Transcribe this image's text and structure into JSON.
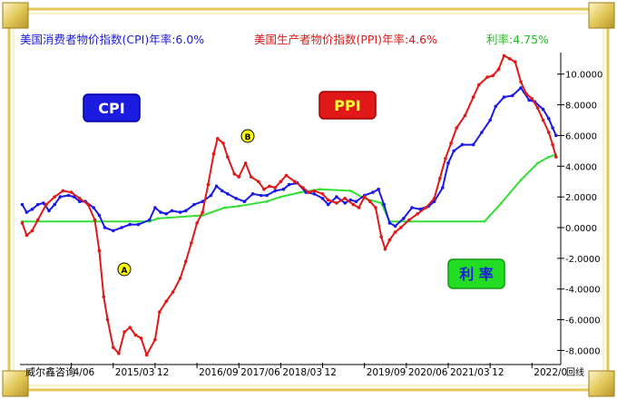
{
  "header": {
    "cpi_text": "美国消费者物价指数(CPI)年率:6.0%",
    "ppi_text": "美国生产者物价指数(PPI)年率:4.6%",
    "rate_text": "利率:4.75%"
  },
  "labels": {
    "cpi_badge": "CPI",
    "ppi_badge": "PPI",
    "rate_badge": "利 率",
    "marker_a": "A",
    "marker_b": "B"
  },
  "footer": {
    "brand": "威尔鑫咨询",
    "corner": "回线"
  },
  "colors": {
    "cpi": "#1a1ae6",
    "ppi": "#e01818",
    "rate": "#33dd33",
    "frame_gold": "#e2c85a",
    "badge_blue": "#1c1ce0",
    "badge_red": "#e01818",
    "badge_green": "#22dd22"
  },
  "chart_data": {
    "type": "line",
    "title": "",
    "xlabel": "",
    "ylabel": "",
    "ylim": [
      -8.8,
      11.4
    ],
    "grid": false,
    "x_ticks": [
      "4/06",
      "2015/03",
      "12",
      "2016/09",
      "2017/06",
      "2018/03",
      "12",
      "2019/09",
      "2020/06",
      "2021/03",
      "12",
      "2022/0"
    ],
    "x_tick_values": [
      2014.5,
      2015.25,
      2016.0,
      2016.75,
      2017.5,
      2018.25,
      2019.0,
      2019.75,
      2020.5,
      2021.25,
      2022.0,
      2022.75
    ],
    "y_ticks": [
      -8.0,
      -6.0,
      -4.0,
      -2.0,
      0.0,
      2.0,
      4.0,
      6.0,
      8.0,
      10.0
    ],
    "y_tick_labels": [
      "-8.0000",
      "-6.0000",
      "-4.0000",
      "-2.0000",
      "0.0000",
      "2.0000",
      "4.0000",
      "6.0000",
      "8.0000",
      "10.0000"
    ],
    "x_range": [
      2013.58,
      2023.2
    ],
    "series": [
      {
        "key": "cpi",
        "points": [
          [
            2013.62,
            1.5
          ],
          [
            2013.7,
            1.0
          ],
          [
            2013.8,
            1.2
          ],
          [
            2013.9,
            1.5
          ],
          [
            2014.0,
            1.6
          ],
          [
            2014.1,
            1.1
          ],
          [
            2014.2,
            1.5
          ],
          [
            2014.3,
            2.0
          ],
          [
            2014.45,
            2.1
          ],
          [
            2014.55,
            2.0
          ],
          [
            2014.65,
            1.7
          ],
          [
            2014.75,
            1.7
          ],
          [
            2014.9,
            1.3
          ],
          [
            2015.0,
            0.8
          ],
          [
            2015.1,
            0.0
          ],
          [
            2015.25,
            -0.2
          ],
          [
            2015.4,
            0.0
          ],
          [
            2015.55,
            0.2
          ],
          [
            2015.7,
            0.2
          ],
          [
            2015.9,
            0.5
          ],
          [
            2016.0,
            1.3
          ],
          [
            2016.1,
            1.0
          ],
          [
            2016.2,
            0.9
          ],
          [
            2016.3,
            1.1
          ],
          [
            2016.45,
            1.0
          ],
          [
            2016.55,
            1.1
          ],
          [
            2016.7,
            1.5
          ],
          [
            2016.85,
            1.7
          ],
          [
            2017.0,
            2.1
          ],
          [
            2017.1,
            2.7
          ],
          [
            2017.2,
            2.4
          ],
          [
            2017.3,
            2.2
          ],
          [
            2017.45,
            1.9
          ],
          [
            2017.6,
            1.7
          ],
          [
            2017.75,
            2.2
          ],
          [
            2017.9,
            2.1
          ],
          [
            2018.0,
            2.1
          ],
          [
            2018.15,
            2.4
          ],
          [
            2018.3,
            2.5
          ],
          [
            2018.4,
            2.8
          ],
          [
            2018.55,
            2.9
          ],
          [
            2018.7,
            2.3
          ],
          [
            2018.85,
            2.2
          ],
          [
            2019.0,
            1.9
          ],
          [
            2019.1,
            1.5
          ],
          [
            2019.25,
            2.0
          ],
          [
            2019.4,
            1.6
          ],
          [
            2019.5,
            1.8
          ],
          [
            2019.6,
            1.7
          ],
          [
            2019.75,
            2.1
          ],
          [
            2019.9,
            2.3
          ],
          [
            2020.0,
            2.5
          ],
          [
            2020.1,
            1.5
          ],
          [
            2020.2,
            0.3
          ],
          [
            2020.3,
            0.1
          ],
          [
            2020.45,
            0.6
          ],
          [
            2020.6,
            1.3
          ],
          [
            2020.75,
            1.2
          ],
          [
            2020.9,
            1.4
          ],
          [
            2021.0,
            1.7
          ],
          [
            2021.15,
            2.6
          ],
          [
            2021.25,
            4.2
          ],
          [
            2021.35,
            5.0
          ],
          [
            2021.5,
            5.4
          ],
          [
            2021.7,
            5.4
          ],
          [
            2021.85,
            6.2
          ],
          [
            2022.0,
            7.0
          ],
          [
            2022.1,
            7.9
          ],
          [
            2022.25,
            8.5
          ],
          [
            2022.4,
            8.6
          ],
          [
            2022.55,
            9.1
          ],
          [
            2022.7,
            8.3
          ],
          [
            2022.8,
            8.2
          ],
          [
            2022.95,
            7.7
          ],
          [
            2023.05,
            7.1
          ],
          [
            2023.12,
            6.5
          ],
          [
            2023.18,
            6.0
          ]
        ]
      },
      {
        "key": "ppi",
        "points": [
          [
            2013.62,
            0.3
          ],
          [
            2013.7,
            -0.5
          ],
          [
            2013.8,
            -0.2
          ],
          [
            2013.9,
            0.5
          ],
          [
            2014.05,
            1.5
          ],
          [
            2014.2,
            2.0
          ],
          [
            2014.35,
            2.4
          ],
          [
            2014.5,
            2.3
          ],
          [
            2014.65,
            1.9
          ],
          [
            2014.8,
            1.5
          ],
          [
            2014.92,
            0.5
          ],
          [
            2015.0,
            -1.5
          ],
          [
            2015.08,
            -4.5
          ],
          [
            2015.15,
            -6.0
          ],
          [
            2015.25,
            -7.8
          ],
          [
            2015.35,
            -8.2
          ],
          [
            2015.45,
            -6.8
          ],
          [
            2015.55,
            -6.5
          ],
          [
            2015.65,
            -7.0
          ],
          [
            2015.75,
            -7.2
          ],
          [
            2015.85,
            -8.3
          ],
          [
            2016.0,
            -7.3
          ],
          [
            2016.08,
            -5.5
          ],
          [
            2016.2,
            -4.8
          ],
          [
            2016.32,
            -4.2
          ],
          [
            2016.45,
            -3.3
          ],
          [
            2016.55,
            -2.2
          ],
          [
            2016.65,
            -1.0
          ],
          [
            2016.75,
            0.3
          ],
          [
            2016.85,
            1.0
          ],
          [
            2016.95,
            2.8
          ],
          [
            2017.05,
            4.8
          ],
          [
            2017.12,
            5.8
          ],
          [
            2017.22,
            5.5
          ],
          [
            2017.3,
            4.6
          ],
          [
            2017.42,
            3.5
          ],
          [
            2017.5,
            3.3
          ],
          [
            2017.62,
            4.2
          ],
          [
            2017.72,
            3.3
          ],
          [
            2017.85,
            3.0
          ],
          [
            2017.95,
            2.5
          ],
          [
            2018.05,
            2.7
          ],
          [
            2018.15,
            2.6
          ],
          [
            2018.25,
            3.0
          ],
          [
            2018.35,
            3.4
          ],
          [
            2018.5,
            3.0
          ],
          [
            2018.65,
            2.6
          ],
          [
            2018.75,
            2.3
          ],
          [
            2018.85,
            2.4
          ],
          [
            2019.0,
            2.2
          ],
          [
            2019.1,
            1.8
          ],
          [
            2019.25,
            1.6
          ],
          [
            2019.4,
            1.9
          ],
          [
            2019.55,
            1.5
          ],
          [
            2019.65,
            1.3
          ],
          [
            2019.75,
            2.0
          ],
          [
            2019.85,
            1.7
          ],
          [
            2019.95,
            1.3
          ],
          [
            2020.05,
            -0.6
          ],
          [
            2020.12,
            -1.4
          ],
          [
            2020.2,
            -0.8
          ],
          [
            2020.3,
            -0.3
          ],
          [
            2020.4,
            0.0
          ],
          [
            2020.55,
            0.5
          ],
          [
            2020.7,
            0.9
          ],
          [
            2020.85,
            1.3
          ],
          [
            2021.0,
            1.9
          ],
          [
            2021.1,
            3.2
          ],
          [
            2021.2,
            4.5
          ],
          [
            2021.3,
            5.5
          ],
          [
            2021.4,
            6.5
          ],
          [
            2021.55,
            7.3
          ],
          [
            2021.7,
            8.5
          ],
          [
            2021.8,
            9.3
          ],
          [
            2021.95,
            9.8
          ],
          [
            2022.05,
            9.9
          ],
          [
            2022.15,
            10.3
          ],
          [
            2022.25,
            11.2
          ],
          [
            2022.35,
            11.0
          ],
          [
            2022.45,
            10.8
          ],
          [
            2022.55,
            9.5
          ],
          [
            2022.65,
            8.7
          ],
          [
            2022.75,
            8.4
          ],
          [
            2022.85,
            7.8
          ],
          [
            2022.95,
            7.0
          ],
          [
            2023.05,
            6.2
          ],
          [
            2023.12,
            5.4
          ],
          [
            2023.18,
            4.6
          ]
        ]
      },
      {
        "key": "rate",
        "points": [
          [
            2013.62,
            0.4
          ],
          [
            2015.9,
            0.4
          ],
          [
            2016.05,
            0.6
          ],
          [
            2016.85,
            0.8
          ],
          [
            2017.25,
            1.3
          ],
          [
            2017.5,
            1.4
          ],
          [
            2018.0,
            1.7
          ],
          [
            2018.25,
            2.0
          ],
          [
            2018.6,
            2.3
          ],
          [
            2018.95,
            2.5
          ],
          [
            2019.5,
            2.4
          ],
          [
            2019.75,
            1.9
          ],
          [
            2020.05,
            1.6
          ],
          [
            2020.2,
            0.4
          ],
          [
            2021.9,
            0.4
          ],
          [
            2022.2,
            1.6
          ],
          [
            2022.55,
            3.1
          ],
          [
            2022.85,
            4.2
          ],
          [
            2023.05,
            4.6
          ],
          [
            2023.18,
            4.75
          ]
        ]
      }
    ]
  }
}
